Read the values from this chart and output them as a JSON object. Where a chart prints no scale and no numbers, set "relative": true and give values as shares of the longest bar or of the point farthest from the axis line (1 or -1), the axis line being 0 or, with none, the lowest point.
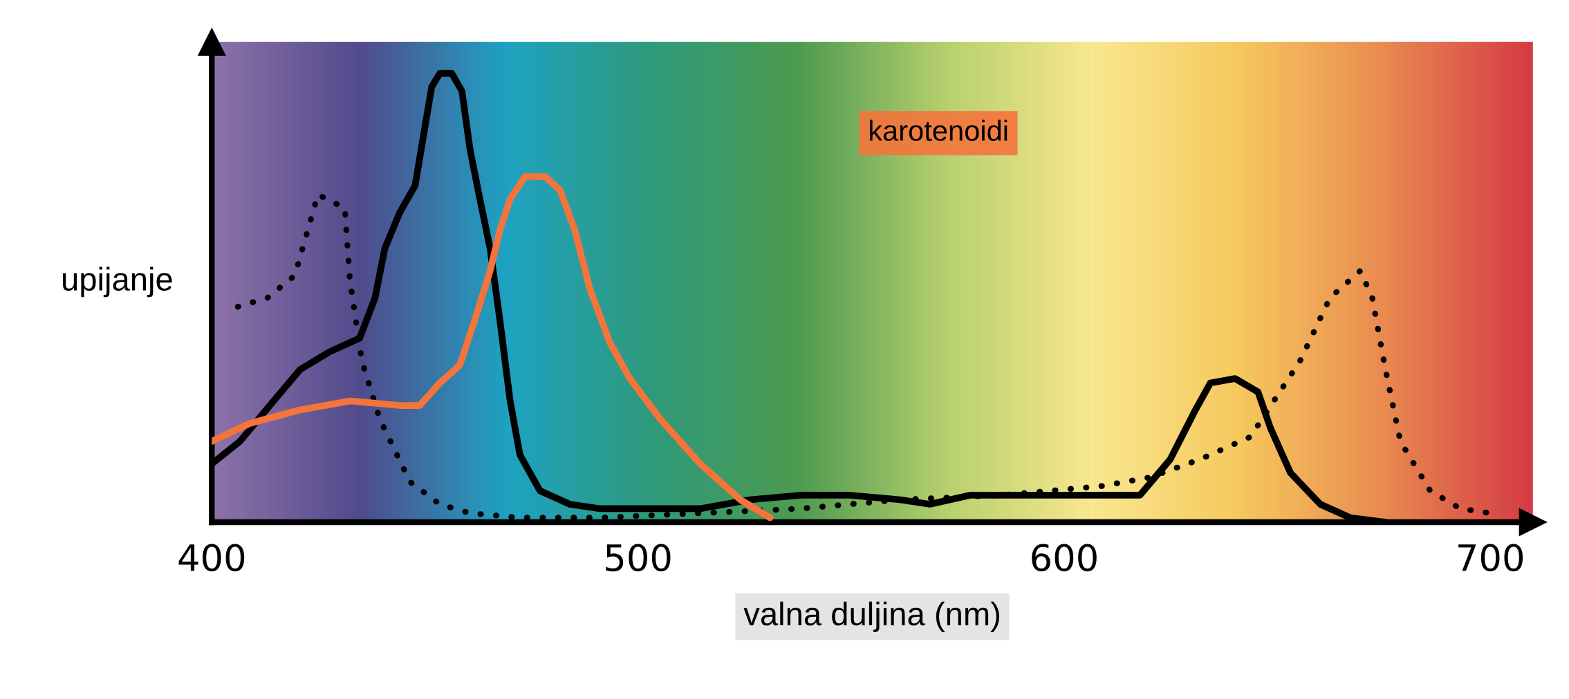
{
  "chart_data": {
    "type": "line",
    "relative": true,
    "xlabel": "valna duljina (nm)",
    "ylabel": "upijanje",
    "xlim": [
      400,
      710
    ],
    "xticks": [
      400,
      500,
      600,
      700
    ],
    "grid": false,
    "legend": false,
    "tick_labels": "x",
    "marker": "none",
    "series": [
      {
        "color": "#000000",
        "line_style": "solid",
        "x": [
          400,
          406.6,
          413.6,
          420.7,
          427.7,
          434.7,
          438.3,
          440.6,
          444.1,
          447.7,
          450.0,
          451.6,
          453.5,
          456.3,
          458.7,
          460.6,
          462.9,
          465.3,
          467.6,
          470.0,
          472.3,
          477.0,
          484.0,
          491.1,
          502.8,
          514.6,
          526.3,
          538.0,
          549.8,
          561.5,
          568.5,
          577.9,
          587.3,
          596.7,
          608.5,
          617.8,
          624.9,
          630.8,
          634.3,
          640.1,
          645.5,
          648.4,
          653.1,
          660.1,
          667.1,
          675.4
        ],
        "values": [
          0.13,
          0.18,
          0.26,
          0.34,
          0.38,
          0.41,
          0.5,
          0.61,
          0.69,
          0.75,
          0.88,
          0.97,
          1.0,
          1.0,
          0.96,
          0.83,
          0.72,
          0.61,
          0.45,
          0.27,
          0.15,
          0.07,
          0.04,
          0.03,
          0.03,
          0.03,
          0.05,
          0.06,
          0.06,
          0.05,
          0.04,
          0.06,
          0.06,
          0.06,
          0.06,
          0.06,
          0.14,
          0.25,
          0.31,
          0.32,
          0.29,
          0.21,
          0.11,
          0.04,
          0.01,
          0.0
        ]
      },
      {
        "color": "#000000",
        "line_style": "dotted",
        "x": [
          406.1,
          413.1,
          419.5,
          424.9,
          431.2,
          432.4,
          435.2,
          439.4,
          446.5,
          453.5,
          460.6,
          472.3,
          491.1,
          514.6,
          538.0,
          561.5,
          585.0,
          608.5,
          620.2,
          631.9,
          643.7,
          655.4,
          662.4,
          669.5,
          672.3,
          675.4,
          678.9,
          685.9,
          693.0,
          700.0
        ],
        "values": [
          0.48,
          0.5,
          0.55,
          0.73,
          0.7,
          0.54,
          0.36,
          0.23,
          0.09,
          0.04,
          0.02,
          0.01,
          0.01,
          0.02,
          0.03,
          0.05,
          0.06,
          0.08,
          0.1,
          0.14,
          0.19,
          0.36,
          0.5,
          0.56,
          0.5,
          0.34,
          0.18,
          0.07,
          0.03,
          0.02
        ]
      },
      {
        "name": "karotenoidi",
        "color": "#f4743c",
        "line_style": "solid",
        "x": [
          400,
          408.9,
          420.7,
          432.4,
          444.1,
          448.8,
          453.5,
          458.2,
          461.7,
          465.3,
          467.6,
          470.0,
          473.5,
          478.2,
          481.7,
          485.2,
          488.7,
          493.4,
          498.1,
          505.2,
          514.6,
          524.0,
          531.0
        ],
        "values": [
          0.18,
          0.22,
          0.25,
          0.27,
          0.26,
          0.26,
          0.31,
          0.35,
          0.45,
          0.56,
          0.65,
          0.72,
          0.77,
          0.77,
          0.74,
          0.65,
          0.52,
          0.4,
          0.32,
          0.23,
          0.13,
          0.05,
          0.01
        ]
      }
    ]
  }
}
